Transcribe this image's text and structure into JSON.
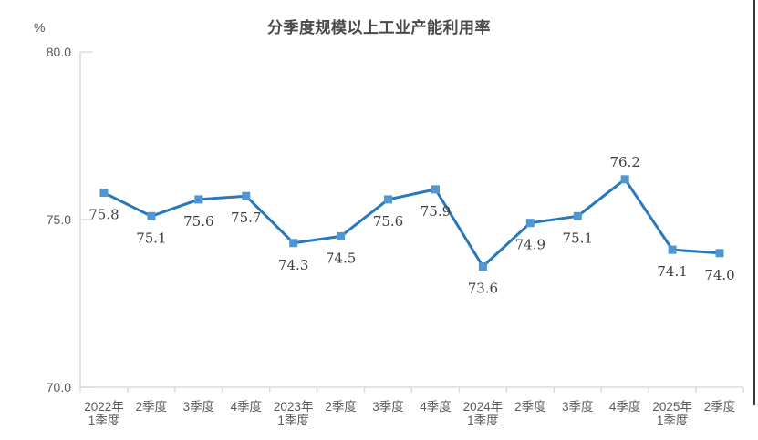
{
  "decor": {
    "right_edge_color": "#3a3a3a",
    "background": "#ffffff"
  },
  "chart_data": {
    "type": "line",
    "title": "分季度规模以上工业产能利用率",
    "unit_label": "%",
    "xlabel": "",
    "categories": [
      "2022年\n1季度",
      "2季度",
      "3季度",
      "4季度",
      "2023年\n1季度",
      "2季度",
      "3季度",
      "4季度",
      "2024年\n1季度",
      "2季度",
      "3季度",
      "4季度",
      "2025年\n1季度",
      "2季度"
    ],
    "values": [
      75.8,
      75.1,
      75.6,
      75.7,
      74.3,
      74.5,
      75.6,
      75.9,
      73.6,
      74.9,
      75.1,
      76.2,
      74.1,
      74.0
    ],
    "value_labels": [
      "75.8",
      "75.1",
      "75.6",
      "75.7",
      "74.3",
      "74.5",
      "75.6",
      "75.9",
      "73.6",
      "74.9",
      "75.1",
      "76.2",
      "74.1",
      "74.0"
    ],
    "label_positions": [
      "below",
      "below",
      "below",
      "below",
      "below",
      "below",
      "below",
      "below",
      "below",
      "below",
      "below",
      "above",
      "below",
      "below"
    ],
    "ylim": [
      70,
      80
    ],
    "yticks": [
      80.0,
      75.0,
      70.0
    ],
    "ytick_labels": [
      "80.0",
      "75.0",
      "70.0"
    ],
    "grid": "off",
    "legend": "none",
    "marker_shape": "square",
    "colors": {
      "line": "#2878BE",
      "marker": "#4E96D4",
      "axis": "#DBDBDB",
      "axis_text": "#595959",
      "value_text": "#404040",
      "title_text": "#4a4a4a"
    }
  }
}
